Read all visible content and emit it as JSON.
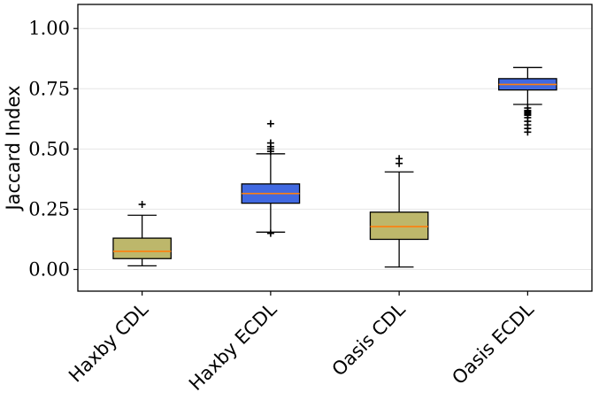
{
  "chart_data": {
    "type": "box",
    "ylabel": "Jaccard Index",
    "xlabel": "",
    "title": "",
    "ylim": [
      -0.09,
      1.1
    ],
    "yticks": [
      0.0,
      0.25,
      0.5,
      0.75,
      1.0
    ],
    "ytick_labels": [
      "0.00",
      "0.25",
      "0.50",
      "0.75",
      "1.00"
    ],
    "grid": "horizontal",
    "categories": [
      "Haxby CDL",
      "Haxby ECDL",
      "Oasis CDL",
      "Oasis ECDL"
    ],
    "boxes": [
      {
        "category": "Haxby CDL",
        "whisker_low": 0.015,
        "q1": 0.045,
        "median": 0.075,
        "q3": 0.13,
        "whisker_high": 0.225,
        "outliers": [
          0.27
        ],
        "fill": "#bdb76b"
      },
      {
        "category": "Haxby ECDL",
        "whisker_low": 0.155,
        "q1": 0.275,
        "median": 0.315,
        "q3": 0.355,
        "whisker_high": 0.48,
        "outliers": [
          0.15,
          0.49,
          0.5,
          0.51,
          0.525,
          0.605
        ],
        "fill": "#4169e1"
      },
      {
        "category": "Oasis CDL",
        "whisker_low": 0.01,
        "q1": 0.125,
        "median": 0.178,
        "q3": 0.238,
        "whisker_high": 0.405,
        "outliers": [
          0.44,
          0.46
        ],
        "fill": "#bdb76b"
      },
      {
        "category": "Oasis ECDL",
        "whisker_low": 0.685,
        "q1": 0.745,
        "median": 0.768,
        "q3": 0.792,
        "whisker_high": 0.838,
        "outliers": [
          0.67,
          0.66,
          0.655,
          0.65,
          0.645,
          0.64,
          0.63,
          0.615,
          0.6,
          0.585,
          0.57
        ],
        "fill": "#4169e1"
      }
    ],
    "median_color": "#ff7f0e"
  }
}
